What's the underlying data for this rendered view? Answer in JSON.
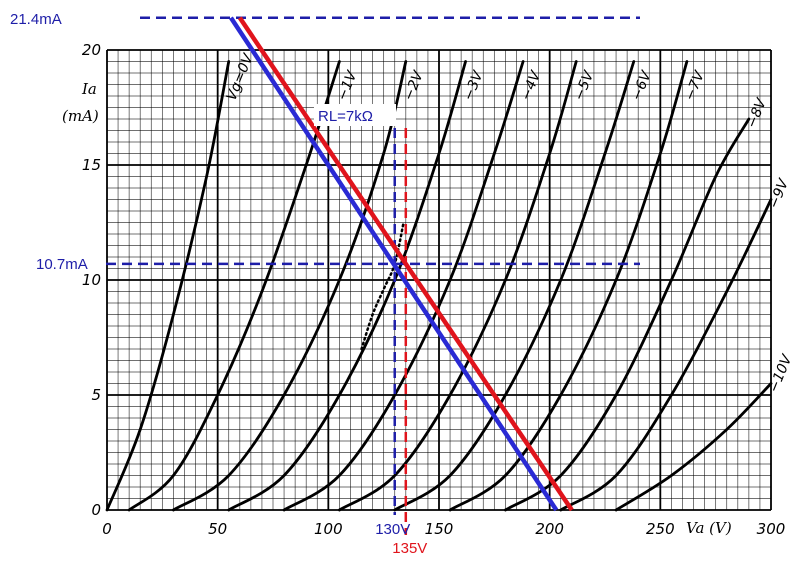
{
  "chart_data": {
    "type": "line",
    "title": "",
    "xlabel": "Va (V)",
    "ylabel": "Ia (mA)",
    "xlim": [
      0,
      300
    ],
    "ylim": [
      0,
      20
    ],
    "x_ticks": [
      "0",
      "50",
      "100",
      "150",
      "200",
      "250",
      "300"
    ],
    "y_ticks": [
      "0",
      "5",
      "10",
      "15",
      "20"
    ],
    "grid": true,
    "series": [
      {
        "name": "Vg=0V",
        "x": [
          0,
          15,
          30,
          45,
          55
        ],
        "y": [
          0,
          3.5,
          8.5,
          14.5,
          19.5
        ]
      },
      {
        "name": "−1V",
        "x": [
          10,
          30,
          50,
          70,
          90,
          105
        ],
        "y": [
          0,
          1.5,
          5,
          9.5,
          15,
          19.5
        ]
      },
      {
        "name": "−2V",
        "x": [
          30,
          55,
          80,
          105,
          125,
          135
        ],
        "y": [
          0,
          1.5,
          5,
          10,
          15.5,
          19.5
        ]
      },
      {
        "name": "−3V",
        "x": [
          55,
          80,
          105,
          130,
          150,
          162
        ],
        "y": [
          0,
          1.5,
          5,
          10,
          15.5,
          19.5
        ]
      },
      {
        "name": "−4V",
        "x": [
          80,
          105,
          130,
          155,
          175,
          188
        ],
        "y": [
          0,
          1.5,
          5,
          10,
          15.5,
          19.5
        ]
      },
      {
        "name": "−5V",
        "x": [
          105,
          130,
          155,
          180,
          200,
          212
        ],
        "y": [
          0,
          1.5,
          5,
          10,
          15.5,
          19.5
        ]
      },
      {
        "name": "−6V",
        "x": [
          130,
          155,
          180,
          205,
          225,
          238
        ],
        "y": [
          0,
          1.5,
          5,
          10,
          15.5,
          19.5
        ]
      },
      {
        "name": "−7V",
        "x": [
          155,
          180,
          205,
          230,
          250,
          262
        ],
        "y": [
          0,
          1.5,
          5,
          10,
          15.5,
          19.5
        ]
      },
      {
        "name": "−8V",
        "x": [
          180,
          205,
          230,
          255,
          275,
          290
        ],
        "y": [
          0,
          1.5,
          5,
          10,
          14.5,
          17
        ]
      },
      {
        "name": "−9V",
        "x": [
          205,
          230,
          255,
          280,
          300
        ],
        "y": [
          0,
          1.5,
          5,
          9.5,
          13.5
        ]
      },
      {
        "name": "−10V",
        "x": [
          230,
          255,
          280,
          300
        ],
        "y": [
          0,
          1.5,
          3.5,
          5.5
        ]
      }
    ],
    "load_lines": [
      {
        "color": "#2a2ad4",
        "x": [
          56,
          203
        ],
        "y": [
          21.4,
          0
        ]
      },
      {
        "color": "#e0141c",
        "x": [
          60,
          210
        ],
        "y": [
          21.4,
          0
        ]
      }
    ],
    "dotted_curve": {
      "x": [
        115,
        120,
        125,
        130,
        134
      ],
      "y": [
        7,
        8.5,
        9.6,
        10.7,
        12.5
      ]
    },
    "guides": {
      "h_top": {
        "value": 21.4,
        "label": "21.4mA",
        "color": "#1e1ea8"
      },
      "h_mid": {
        "value": 10.7,
        "label": "10.7mA",
        "color": "#1e1ea8"
      },
      "v_blue": {
        "value": 130,
        "label": "130V",
        "color": "#1e1ea8"
      },
      "v_red": {
        "value": 135,
        "label": "135V",
        "color": "#e0141c"
      }
    },
    "annotation": {
      "label": "RL=7kΩ",
      "color": "#1e1ea8"
    }
  }
}
